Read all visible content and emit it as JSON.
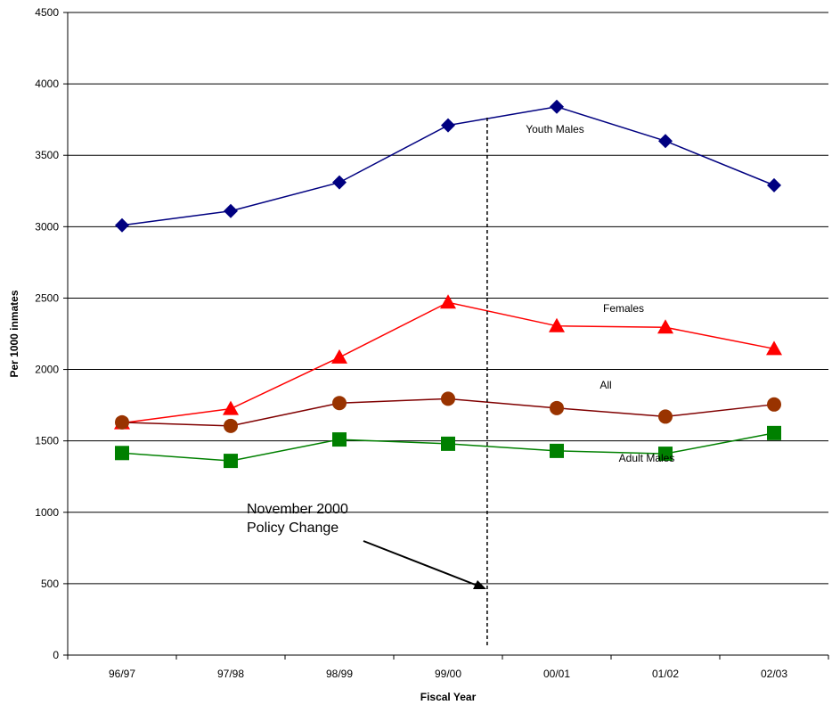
{
  "chart_data": {
    "type": "line",
    "title": "",
    "xlabel": "Fiscal Year",
    "ylabel": "Per 1000 inmates",
    "ylim": [
      0,
      4500
    ],
    "ytick_step": 500,
    "grid": true,
    "legend": "none",
    "categories": [
      "96/97",
      "97/98",
      "98/99",
      "99/00",
      "00/01",
      "01/02",
      "02/03"
    ],
    "series": [
      {
        "name": "Youth Males",
        "color": "#000080",
        "marker": "diamond",
        "values": [
          3010,
          3110,
          3310,
          3710,
          3840,
          3600,
          3290
        ]
      },
      {
        "name": "Females",
        "color": "#ff0000",
        "marker": "triangle",
        "values": [
          1625,
          1725,
          2085,
          2470,
          2305,
          2295,
          2145
        ]
      },
      {
        "name": "All",
        "color": "#800000",
        "marker_color": "#993300",
        "marker": "circle",
        "values": [
          1630,
          1605,
          1765,
          1795,
          1730,
          1670,
          1755
        ]
      },
      {
        "name": "Adult Males",
        "color": "#008000",
        "marker": "square",
        "values": [
          1415,
          1360,
          1510,
          1480,
          1430,
          1410,
          1555
        ]
      }
    ],
    "annotation": {
      "lines": [
        "November 2000",
        "Policy Change"
      ],
      "marker": "dashed vertical line between 99/00 and 00/01"
    }
  }
}
